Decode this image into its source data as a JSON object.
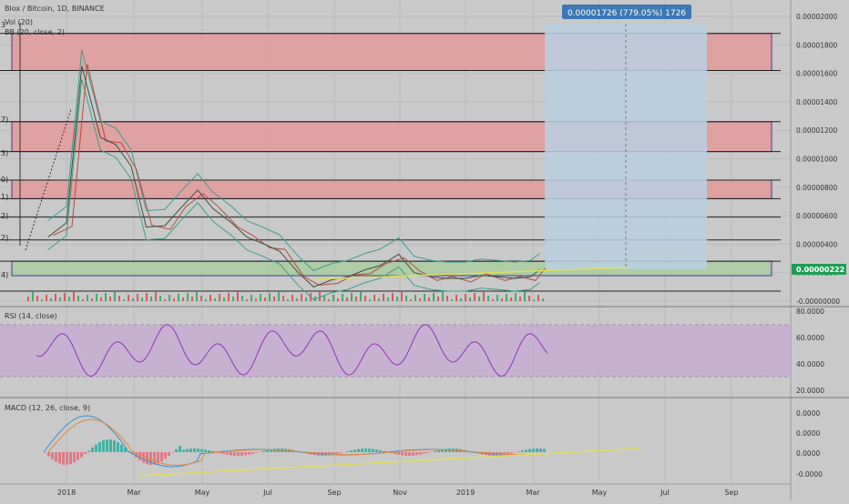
{
  "header": {
    "symbol_title": "Blox / Bitcoin, 1D, BINANCE",
    "volume_label": "Vol (20)",
    "bb_label": "BB (20, close, 2)"
  },
  "measure_tooltip": "0.00001726 (779.05%) 1726",
  "left_cut_labels": [
    "3",
    "7)",
    "3)",
    "0)",
    "1)",
    "2)",
    "2)",
    "4)"
  ],
  "price_axis": {
    "ticks": [
      "0.00002000",
      "0.00001800",
      "0.00001600",
      "0.00001400",
      "0.00001200",
      "0.00001000",
      "0.00000800",
      "0.00000600",
      "0.00000400",
      "0.00000200",
      "-0.00000000"
    ],
    "current_price_label": "0.00000222"
  },
  "rsi_panel": {
    "label": "RSI (14, close)",
    "ticks": [
      "80.0000",
      "60.0000",
      "40.0000",
      "20.0000"
    ],
    "band_upper": 70,
    "band_lower": 30
  },
  "macd_panel": {
    "label": "MACD (12, 26, close, 9)",
    "ticks": [
      "0.0000",
      "0.0000",
      "0.0000",
      "-0.0000"
    ]
  },
  "time_axis": {
    "labels": [
      "2018",
      "Mar",
      "May",
      "Jul",
      "Sep",
      "Nov",
      "2019",
      "Mar",
      "May",
      "Jul",
      "Sep"
    ]
  },
  "colors": {
    "background": "#c9c9c9",
    "resistance_zone": "#e49a9a",
    "support_zone": "#a9cda0",
    "measure_box": "#b8cfe2",
    "price_line": "#5a7a55",
    "bb_band": "#3e9e8a",
    "bb_basis": "#b84a3c",
    "rsi_line": "#8d35b4",
    "rsi_band": "#c7a8d2",
    "macd_line": "#3a8fd0",
    "signal_line": "#e08a3a",
    "trendline": "#dede58",
    "current_price_tag": "#1e9e52",
    "tooltip_bg": "#3c78b4"
  },
  "chart_data": {
    "type": "line",
    "price_line_series_estimate": {
      "x": [
        "2017-12-15",
        "2018-01-01",
        "2018-01-15",
        "2018-02-01",
        "2018-02-15",
        "2018-03-01",
        "2018-03-15",
        "2018-04-01",
        "2018-04-15",
        "2018-05-01",
        "2018-05-15",
        "2018-06-01",
        "2018-06-15",
        "2018-07-01",
        "2018-07-15",
        "2018-08-01",
        "2018-08-15",
        "2018-09-01",
        "2018-09-15",
        "2018-10-01",
        "2018-10-15",
        "2018-11-01",
        "2018-11-15",
        "2018-12-01",
        "2018-12-15",
        "2019-01-01",
        "2019-01-15",
        "2019-02-01",
        "2019-02-15",
        "2019-03-01",
        "2019-03-10"
      ],
      "y": [
        4.5e-06,
        5.5e-06,
        1.65e-05,
        1.15e-05,
        1.1e-05,
        9.5e-06,
        5.2e-06,
        5.3e-06,
        6.5e-06,
        7.8e-06,
        6.5e-06,
        5.5e-06,
        4.5e-06,
        4e-06,
        3.5e-06,
        2e-06,
        1e-06,
        1.5e-06,
        1.7e-06,
        2.2e-06,
        2.5e-06,
        3.3e-06,
        2e-06,
        1.7e-06,
        1.6e-06,
        1.6e-06,
        1.8e-06,
        1.7e-06,
        1.6e-06,
        1.7e-06,
        2.2e-06
      ]
    },
    "zones": [
      {
        "kind": "resistance",
        "from": 1.62e-05,
        "to": 1.88e-05
      },
      {
        "kind": "resistance",
        "from": 1.05e-05,
        "to": 1.26e-05
      },
      {
        "kind": "resistance",
        "from": 7.2e-06,
        "to": 8.5e-06
      },
      {
        "kind": "support",
        "from": 0.0,
        "to": 2.8e-06
      }
    ],
    "horizontal_levels": [
      1.88e-05,
      1.62e-05,
      1.26e-05,
      1.05e-05,
      8.5e-06,
      7.2e-06,
      5.9e-06,
      4.3e-06,
      2.8e-06,
      7e-07
    ],
    "price_ylim": [
      0,
      2.1e-05
    ],
    "rsi_ylim": [
      15,
      85
    ],
    "current_price": 2.22e-06,
    "projection_target": 1.948e-05,
    "grid": true
  }
}
